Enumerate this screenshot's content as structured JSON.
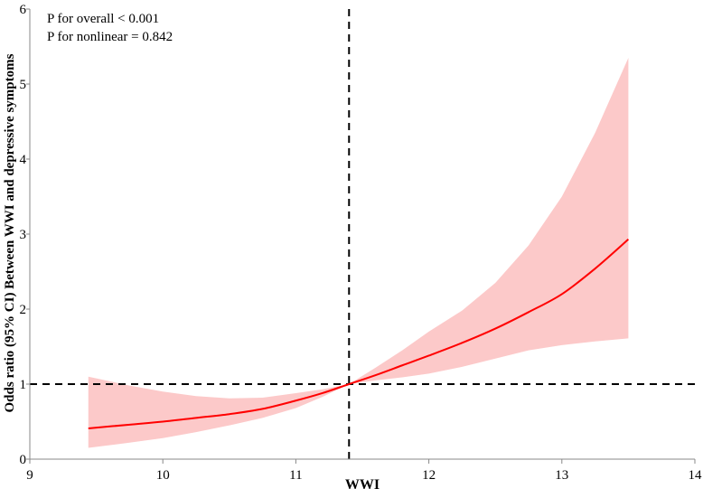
{
  "chart_data": {
    "type": "line",
    "title": "",
    "xlabel": "WWI",
    "ylabel": "Odds ratio (95% CI) Between WWI and depressive symptoms",
    "xlim": [
      9,
      14
    ],
    "ylim": [
      0,
      6
    ],
    "xticks": [
      "9",
      "10",
      "11",
      "12",
      "13",
      "14"
    ],
    "yticks": [
      "0",
      "1",
      "2",
      "3",
      "4",
      "5",
      "6"
    ],
    "grid": false,
    "annotations": [
      "P for overall < 0.001",
      "P for nonlinear = 0.842"
    ],
    "reference_lines": {
      "x": 11.4,
      "y": 1
    },
    "colors": {
      "line": "#ff0000",
      "band": "#fcc9c9",
      "reference": "#000000"
    },
    "series": [
      {
        "name": "Odds ratio",
        "x": [
          9.44,
          9.75,
          10.0,
          10.25,
          10.5,
          10.75,
          11.0,
          11.2,
          11.4,
          11.6,
          11.8,
          12.0,
          12.25,
          12.5,
          12.75,
          13.0,
          13.25,
          13.5
        ],
        "y": [
          0.41,
          0.46,
          0.5,
          0.55,
          0.6,
          0.67,
          0.78,
          0.88,
          1.0,
          1.12,
          1.25,
          1.38,
          1.55,
          1.74,
          1.96,
          2.2,
          2.54,
          2.93
        ],
        "lower": [
          0.15,
          0.22,
          0.28,
          0.36,
          0.45,
          0.55,
          0.68,
          0.83,
          1.0,
          1.05,
          1.09,
          1.14,
          1.23,
          1.34,
          1.45,
          1.52,
          1.57,
          1.61
        ],
        "upper": [
          1.1,
          0.98,
          0.9,
          0.84,
          0.81,
          0.82,
          0.88,
          0.93,
          1.0,
          1.22,
          1.45,
          1.7,
          1.98,
          2.35,
          2.85,
          3.5,
          4.35,
          5.35
        ]
      }
    ]
  }
}
